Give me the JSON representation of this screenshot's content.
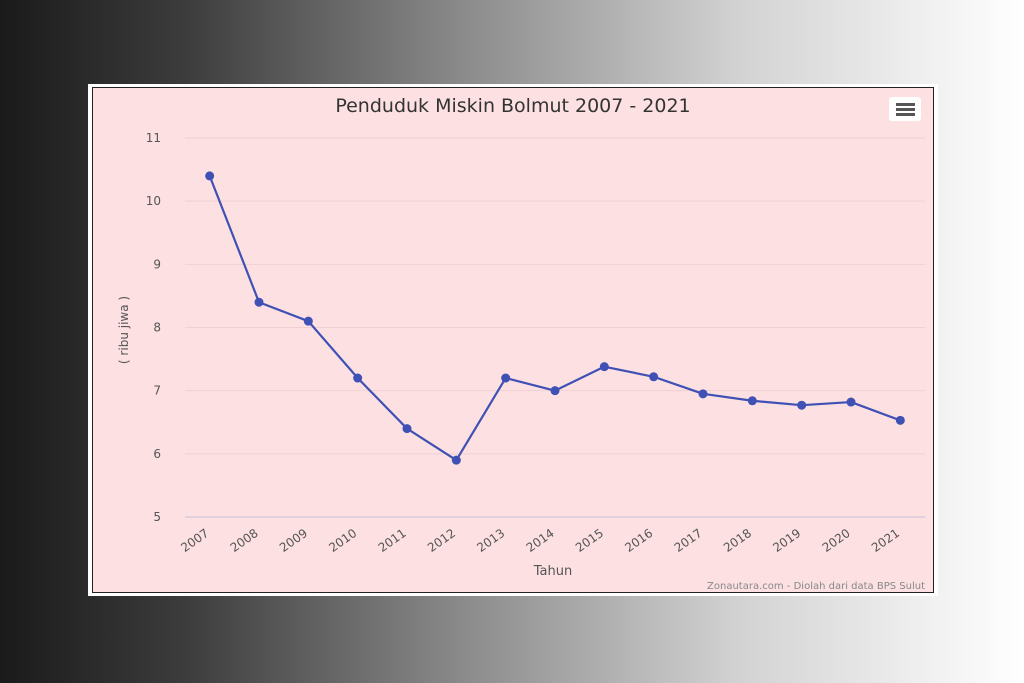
{
  "chart_data": {
    "type": "line",
    "title": "Penduduk Miskin Bolmut 2007 - 2021",
    "xlabel": "Tahun",
    "ylabel": "( ribu jiwa )",
    "x": [
      "2007",
      "2008",
      "2009",
      "2010",
      "2011",
      "2012",
      "2013",
      "2014",
      "2015",
      "2016",
      "2017",
      "2018",
      "2019",
      "2020",
      "2021"
    ],
    "series": [
      {
        "values": [
          10.4,
          8.4,
          8.1,
          7.2,
          6.4,
          5.9,
          7.2,
          7.0,
          7.38,
          7.22,
          6.95,
          6.84,
          6.77,
          6.82,
          6.53
        ]
      }
    ],
    "ylim": [
      5,
      11
    ],
    "yticks": [
      "5",
      "6",
      "7",
      "8",
      "9",
      "10",
      "11"
    ],
    "grid": true,
    "credits": "Zonautara.com - Diolah dari data BPS Sulut",
    "colors": {
      "line": "#3f51b5",
      "background": "#fde0e2",
      "grid": "#f0d0d2"
    }
  },
  "menu": {
    "icon": "hamburger-menu-icon"
  }
}
